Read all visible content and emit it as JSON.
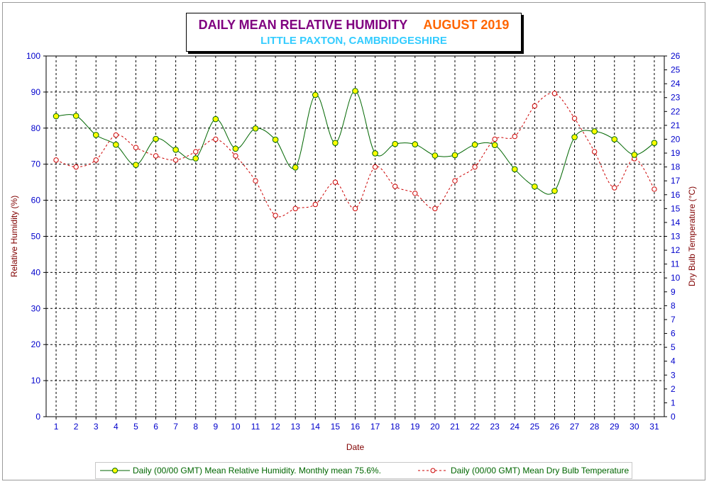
{
  "title": {
    "main": "DAILY MEAN RELATIVE HUMIDITY",
    "period": "AUGUST 2019",
    "subtitle": "LITTLE PAXTON, CAMBRIDGESHIRE"
  },
  "colors": {
    "rh_line": "#006600",
    "rh_marker": "#ffff00",
    "temp_line": "#cc0000",
    "axis_text": "#0000cc",
    "axis_title": "#800000",
    "grid": "#000000"
  },
  "chart_data": {
    "type": "line",
    "xlabel": "Date",
    "ylabel": "Relative Humidity (%)",
    "y2label": "Dry Bulb Temperature (°C)",
    "x": [
      1,
      2,
      3,
      4,
      5,
      6,
      7,
      8,
      9,
      10,
      11,
      12,
      13,
      14,
      15,
      16,
      17,
      18,
      19,
      20,
      21,
      22,
      23,
      24,
      25,
      26,
      27,
      28,
      29,
      30,
      31
    ],
    "xlim": [
      0.5,
      31.5
    ],
    "ylim": [
      0,
      100
    ],
    "y_ticks": [
      0,
      10,
      20,
      30,
      40,
      50,
      60,
      70,
      80,
      90,
      100
    ],
    "y2lim": [
      0,
      26
    ],
    "y2_ticks": [
      0,
      1,
      2,
      3,
      4,
      5,
      6,
      7,
      8,
      9,
      10,
      11,
      12,
      13,
      14,
      15,
      16,
      17,
      18,
      19,
      20,
      21,
      22,
      23,
      24,
      25,
      26
    ],
    "grid": true,
    "legend_position": "bottom",
    "series": [
      {
        "name": "Daily (00/00 GMT) Mean Relative Humidity. Monthly mean 75.6%.",
        "axis": "left",
        "style": "solid",
        "values": [
          83.3,
          83.4,
          78.1,
          75.4,
          69.8,
          77.0,
          74.0,
          71.6,
          82.5,
          74.3,
          79.9,
          76.8,
          69.1,
          89.2,
          75.9,
          90.3,
          73.0,
          75.6,
          75.5,
          72.4,
          72.5,
          75.4,
          75.3,
          68.6,
          63.8,
          62.6,
          77.5,
          79.1,
          76.9,
          72.6,
          75.9
        ]
      },
      {
        "name": "Daily (00/00 GMT) Mean Dry Bulb Temperature",
        "axis": "right",
        "style": "dashed",
        "values": [
          18.5,
          18.0,
          18.5,
          20.3,
          19.4,
          18.8,
          18.5,
          19.1,
          20.0,
          18.8,
          17.0,
          14.5,
          15.0,
          15.3,
          16.9,
          15.0,
          18.0,
          16.6,
          16.1,
          15.0,
          17.0,
          18.0,
          20.0,
          20.2,
          22.4,
          23.3,
          21.5,
          19.1,
          16.5,
          18.6,
          16.4
        ]
      }
    ]
  }
}
